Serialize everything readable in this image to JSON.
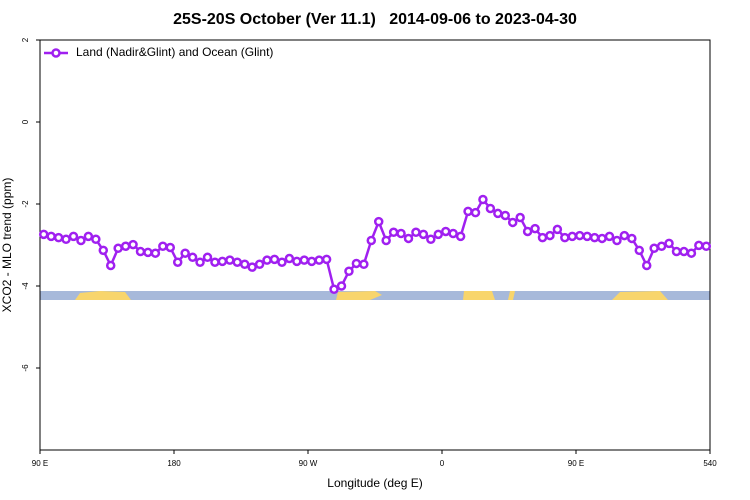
{
  "chart_data": {
    "type": "line",
    "title": "25S-20S October (Ver 11.1)   2014-09-06 to 2023-04-30",
    "x_label": "Longitude (deg E)",
    "y_label": "XCO2 - MLO trend (ppm)",
    "x": [
      92.5,
      97.5,
      102.5,
      107.5,
      112.5,
      117.5,
      122.5,
      127.5,
      132.5,
      137.5,
      142.5,
      147.5,
      152.5,
      157.5,
      162.5,
      167.5,
      172.5,
      177.5,
      182.5,
      187.5,
      192.5,
      197.5,
      202.5,
      207.5,
      212.5,
      217.5,
      222.5,
      227.5,
      232.5,
      237.5,
      242.5,
      247.5,
      252.5,
      257.5,
      262.5,
      267.5,
      272.5,
      277.5,
      282.5,
      287.5,
      292.5,
      297.5,
      302.5,
      307.5,
      312.5,
      317.5,
      322.5,
      327.5,
      332.5,
      337.5,
      342.5,
      347.5,
      352.5,
      357.5,
      362.5,
      367.5,
      372.5,
      377.5,
      382.5,
      387.5,
      392.5,
      397.5,
      402.5,
      407.5,
      412.5,
      417.5,
      422.5,
      427.5,
      432.5,
      437.5,
      442.5,
      447.5,
      452.5,
      457.5,
      462.5,
      467.5,
      472.5,
      477.5,
      482.5,
      487.5,
      492.5,
      497.5,
      502.5,
      507.5,
      512.5,
      517.5,
      522.5,
      527.5,
      532.5,
      537.5
    ],
    "series": [
      {
        "name": "Land (Nadir&Glint) and Ocean (Glint)",
        "color": "#a020f0",
        "values": [
          -2.74,
          -2.79,
          -2.82,
          -2.86,
          -2.79,
          -2.89,
          -2.79,
          -2.86,
          -3.13,
          -3.5,
          -3.08,
          -3.03,
          -2.99,
          -3.16,
          -3.18,
          -3.2,
          -3.03,
          -3.06,
          -3.42,
          -3.2,
          -3.3,
          -3.42,
          -3.3,
          -3.42,
          -3.4,
          -3.37,
          -3.42,
          -3.47,
          -3.54,
          -3.47,
          -3.37,
          -3.35,
          -3.42,
          -3.33,
          -3.4,
          -3.37,
          -3.4,
          -3.37,
          -3.35,
          -4.08,
          -4.0,
          -3.64,
          -3.45,
          -3.47,
          -2.89,
          -2.43,
          -2.89,
          -2.69,
          -2.72,
          -2.84,
          -2.69,
          -2.74,
          -2.86,
          -2.74,
          -2.67,
          -2.72,
          -2.79,
          -2.18,
          -2.21,
          -1.89,
          -2.11,
          -2.23,
          -2.28,
          -2.45,
          -2.33,
          -2.67,
          -2.6,
          -2.82,
          -2.77,
          -2.62,
          -2.82,
          -2.79,
          -2.77,
          -2.79,
          -2.82,
          -2.84,
          -2.79,
          -2.89,
          -2.77,
          -2.84,
          -3.13,
          -3.5,
          -3.08,
          -3.03,
          -2.96,
          -3.16,
          -3.16,
          -3.2,
          -3.01,
          -3.03
        ]
      }
    ],
    "xlim": [
      90,
      540
    ],
    "xticks": [
      {
        "value": 90,
        "label": "90 E"
      },
      180,
      {
        "value": 270,
        "label": "90 W"
      },
      {
        "value": 360,
        "label": "0"
      },
      {
        "value": 450,
        "label": "90 E"
      },
      540
    ],
    "ylim": [
      -8,
      2
    ],
    "yticks": [
      -6,
      -4,
      -2,
      0,
      2
    ],
    "grid": false,
    "legend": "top-left"
  }
}
